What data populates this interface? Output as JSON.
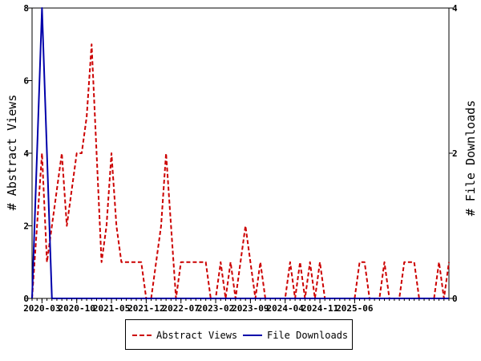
{
  "chart_data": {
    "type": "line",
    "x_ticks": [
      "2020-03",
      "2020-10",
      "2021-05",
      "2021-12",
      "2022-07",
      "2023-02",
      "2023-09",
      "2024-04",
      "2024-11",
      "2025-06"
    ],
    "ylabel_left": "# Abstract Views",
    "ylabel_right": "# File Downloads",
    "ylim_left": [
      0,
      8
    ],
    "yticks_left": [
      "0",
      "2",
      "4",
      "6",
      "8"
    ],
    "ylim_right": [
      0,
      4
    ],
    "yticks_right": [
      "0",
      "2",
      "4"
    ],
    "grid": false,
    "legend_position": "bottom-center",
    "series": [
      {
        "name": "Abstract Views",
        "axis": "left",
        "color": "#cc0000",
        "dash": true,
        "points": [
          [
            "2020-01",
            0
          ],
          [
            "2020-02",
            2
          ],
          [
            "2020-03",
            4
          ],
          [
            "2020-04",
            1
          ],
          [
            "2020-05",
            2
          ],
          [
            "2020-06",
            3
          ],
          [
            "2020-07",
            4
          ],
          [
            "2020-08",
            2
          ],
          [
            "2020-09",
            3
          ],
          [
            "2020-10",
            4
          ],
          [
            "2020-11",
            4
          ],
          [
            "2020-12",
            5
          ],
          [
            "2021-01",
            7
          ],
          [
            "2021-02",
            4
          ],
          [
            "2021-03",
            1
          ],
          [
            "2021-04",
            2
          ],
          [
            "2021-05",
            4
          ],
          [
            "2021-06",
            2
          ],
          [
            "2021-07",
            1
          ],
          [
            "2021-08",
            1
          ],
          [
            "2021-09",
            1
          ],
          [
            "2021-10",
            1
          ],
          [
            "2021-11",
            1
          ],
          [
            "2021-12",
            0
          ],
          [
            "2022-01",
            0
          ],
          [
            "2022-02",
            1
          ],
          [
            "2022-03",
            2
          ],
          [
            "2022-04",
            4
          ],
          [
            "2022-05",
            2
          ],
          [
            "2022-06",
            0
          ],
          [
            "2022-07",
            1
          ],
          [
            "2022-08",
            1
          ],
          [
            "2022-09",
            1
          ],
          [
            "2022-10",
            1
          ],
          [
            "2022-11",
            1
          ],
          [
            "2022-12",
            1
          ],
          [
            "2023-01",
            0
          ],
          [
            "2023-02",
            0
          ],
          [
            "2023-03",
            1
          ],
          [
            "2023-04",
            0
          ],
          [
            "2023-05",
            1
          ],
          [
            "2023-06",
            0
          ],
          [
            "2023-07",
            1
          ],
          [
            "2023-08",
            2
          ],
          [
            "2023-09",
            1
          ],
          [
            "2023-10",
            0
          ],
          [
            "2023-11",
            1
          ],
          [
            "2023-12",
            0
          ],
          [
            "2024-01",
            0
          ],
          [
            "2024-02",
            0
          ],
          [
            "2024-03",
            0
          ],
          [
            "2024-04",
            0
          ],
          [
            "2024-05",
            1
          ],
          [
            "2024-06",
            0
          ],
          [
            "2024-07",
            1
          ],
          [
            "2024-08",
            0
          ],
          [
            "2024-09",
            1
          ],
          [
            "2024-10",
            0
          ],
          [
            "2024-11",
            1
          ],
          [
            "2024-12",
            0
          ],
          [
            "2025-01",
            0
          ],
          [
            "2025-02",
            0
          ],
          [
            "2025-03",
            0
          ],
          [
            "2025-04",
            0
          ],
          [
            "2025-05",
            0
          ],
          [
            "2025-06",
            0
          ],
          [
            "2025-07",
            1
          ],
          [
            "2025-08",
            1
          ],
          [
            "2025-09",
            0
          ],
          [
            "2025-10",
            0
          ],
          [
            "2025-11",
            0
          ],
          [
            "2025-12",
            1
          ],
          [
            "2026-01",
            0
          ],
          [
            "2026-02",
            0
          ],
          [
            "2026-03",
            0
          ],
          [
            "2026-04",
            1
          ],
          [
            "2026-05",
            1
          ],
          [
            "2026-06",
            1
          ],
          [
            "2026-07",
            0
          ],
          [
            "2026-08",
            0
          ],
          [
            "2026-09",
            0
          ],
          [
            "2026-10",
            0
          ],
          [
            "2026-11",
            1
          ],
          [
            "2026-12",
            0
          ],
          [
            "2027-01",
            1
          ]
        ]
      },
      {
        "name": "File Downloads",
        "axis": "right",
        "color": "#0000aa",
        "dash": false,
        "points": [
          [
            "2020-01",
            0
          ],
          [
            "2020-02",
            2
          ],
          [
            "2020-03",
            4
          ],
          [
            "2020-04",
            2
          ],
          [
            "2020-05",
            0
          ],
          [
            "2020-06",
            0
          ],
          [
            "2027-01",
            0
          ]
        ]
      }
    ]
  }
}
